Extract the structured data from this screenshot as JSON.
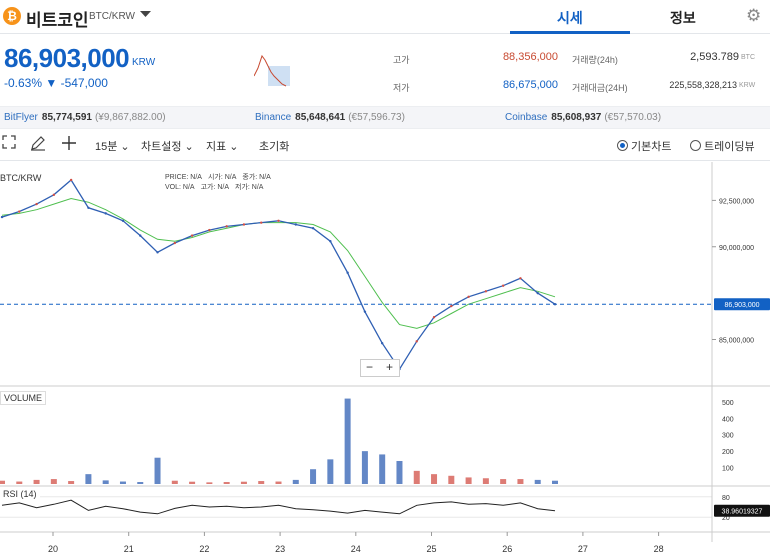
{
  "header": {
    "coin_logo": "₿",
    "coin_name": "비트코인",
    "pair": "BTC/KRW",
    "dropdown_icon": "caret-down-icon",
    "tabs": [
      {
        "label": "시세",
        "active": true
      },
      {
        "label": "정보",
        "active": false
      }
    ],
    "settings_icon": "gear-icon"
  },
  "summary": {
    "price": "86,903,000",
    "unit": "KRW",
    "change": "-0.63% ▼ -547,000",
    "high_label": "고가",
    "high": "88,356,000",
    "low_label": "저가",
    "low": "86,675,000",
    "vol_label": "거래량(24h)",
    "vol": "2,593.789",
    "vol_unit": "BTC",
    "amount_label": "거래대금(24H)",
    "amount": "225,558,328,213",
    "amount_unit": "KRW"
  },
  "exchanges": [
    {
      "name": "BitFlyer",
      "price": "85,774,591",
      "sub": "(¥9,867,882.00)"
    },
    {
      "name": "Binance",
      "price": "85,648,641",
      "sub": "(€57,596.73)"
    },
    {
      "name": "Coinbase",
      "price": "85,608,937",
      "sub": "(€57,570.03)"
    }
  ],
  "toolbar": {
    "fullscreen_icon": "fullscreen-icon",
    "draw_icon": "pencil-icon",
    "crosshair_icon": "crosshair-icon",
    "interval": "15분 ⌄",
    "chart_settings": "차트설정 ⌄",
    "indicators": "지표 ⌄",
    "reset": "초기화",
    "basic_chart": "기본차트",
    "tradingview": "트레이딩뷰"
  },
  "chart": {
    "pair_label": "BTC/KRW",
    "ohlc": {
      "price": "PRICE: N/A",
      "open": "시가: N/A",
      "high": "종가: N/A",
      "vol": "VOL: N/A",
      "hi": "고가: N/A",
      "lo": "저가: N/A"
    },
    "volume_label": "VOLUME",
    "rsi_label": "RSI (14)",
    "price_tag": "86,903,000",
    "rsi_tag": "38.96019327",
    "zoom_minus": "−",
    "zoom_plus": "+",
    "colors": {
      "up": "#d24f45",
      "down": "#2f5fb3",
      "ma": "#4fbf4f",
      "tag": "#1261c4"
    }
  },
  "chart_data": {
    "type": "line",
    "x_ticks": [
      "20",
      "21",
      "22",
      "23",
      "24",
      "25",
      "26",
      "27",
      "28"
    ],
    "price_ticks": [
      "92,500,000",
      "90,000,000",
      "85,000,000"
    ],
    "volume_ticks": [
      "500",
      "400",
      "300",
      "200",
      "100"
    ],
    "rsi_ticks": [
      "80",
      "20"
    ],
    "price_series": [
      91.6,
      91.9,
      92.3,
      92.8,
      93.6,
      92.1,
      91.8,
      91.4,
      90.6,
      89.7,
      90.2,
      90.6,
      90.9,
      91.1,
      91.2,
      91.3,
      91.4,
      91.2,
      91.0,
      90.3,
      88.6,
      86.5,
      84.8,
      83.4,
      84.9,
      86.2,
      86.8,
      87.3,
      87.6,
      87.9,
      88.3,
      87.5,
      86.9
    ],
    "ma_series": [
      91.7,
      91.8,
      92.0,
      92.3,
      92.6,
      92.4,
      92.0,
      91.5,
      90.9,
      90.4,
      90.3,
      90.5,
      90.8,
      91.0,
      91.2,
      91.3,
      91.3,
      91.3,
      91.2,
      90.8,
      89.8,
      88.4,
      87.0,
      85.8,
      85.6,
      85.9,
      86.4,
      86.9,
      87.2,
      87.5,
      87.8,
      87.6,
      87.3
    ],
    "volume_series": [
      20,
      15,
      25,
      30,
      18,
      60,
      22,
      15,
      12,
      160,
      20,
      14,
      10,
      12,
      14,
      18,
      15,
      25,
      90,
      150,
      520,
      200,
      180,
      140,
      80,
      60,
      50,
      40,
      35,
      30,
      30,
      25,
      20
    ],
    "rsi_series": [
      55,
      62,
      48,
      58,
      70,
      40,
      52,
      45,
      35,
      30,
      46,
      55,
      50,
      52,
      48,
      50,
      55,
      45,
      42,
      38,
      32,
      40,
      35,
      30,
      55,
      62,
      65,
      58,
      60,
      55,
      62,
      45,
      39
    ]
  }
}
